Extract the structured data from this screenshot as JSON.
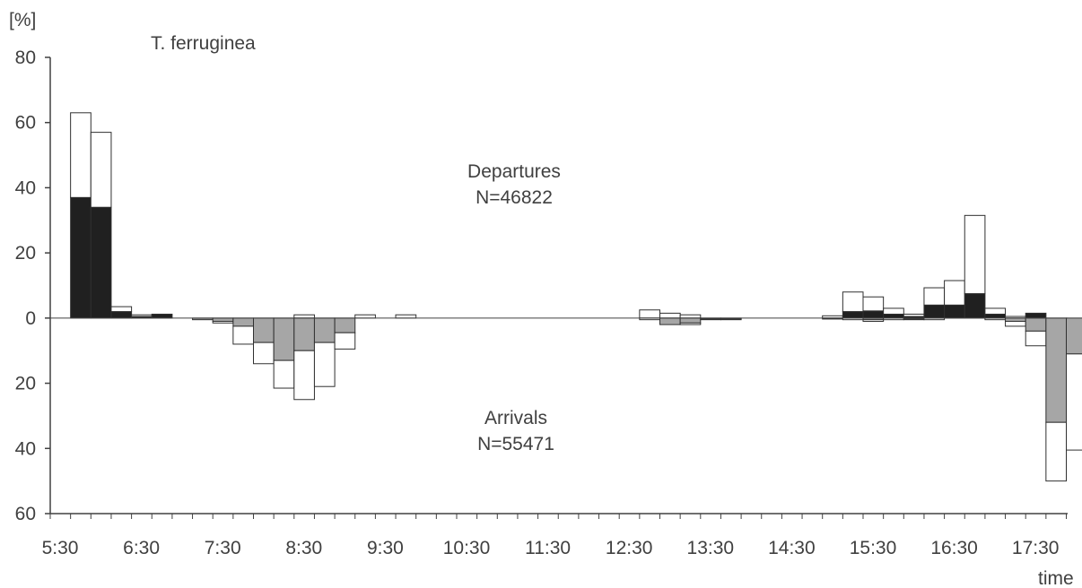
{
  "chart_data": {
    "type": "bar",
    "title": "T. ferruginea",
    "ylabel": "[%]",
    "xlabel": "time",
    "ylim": [
      -60,
      80
    ],
    "y_ticks": [
      {
        "value": 80,
        "label": "80"
      },
      {
        "value": 60,
        "label": "60"
      },
      {
        "value": 40,
        "label": "40"
      },
      {
        "value": 20,
        "label": "20"
      },
      {
        "value": 0,
        "label": "0"
      },
      {
        "value": -20,
        "label": "20"
      },
      {
        "value": -40,
        "label": "40"
      },
      {
        "value": -60,
        "label": "60"
      }
    ],
    "x_tick_labels": [
      "5:30",
      "6:30",
      "7:30",
      "8:30",
      "9:30",
      "10:30",
      "11:30",
      "12:30",
      "13:30",
      "14:30",
      "15:30",
      "16:30",
      "17:30"
    ],
    "bin_minutes": 15,
    "annotations": {
      "departures_label": "Departures",
      "departures_n": "N=46822",
      "arrivals_label": "Arrivals",
      "arrivals_n": "N=55471"
    },
    "departures": [
      {
        "slot": 1,
        "total": 63,
        "dark": 37
      },
      {
        "slot": 2,
        "total": 57,
        "dark": 34
      },
      {
        "slot": 3,
        "total": 3.5,
        "dark": 2
      },
      {
        "slot": 4,
        "total": 1,
        "dark": 0.5
      },
      {
        "slot": 5,
        "total": 1.2,
        "dark": 1.2
      },
      {
        "slot": 12,
        "total": 1,
        "dark": 0
      },
      {
        "slot": 15,
        "total": 1,
        "dark": 0
      },
      {
        "slot": 17,
        "total": 1,
        "dark": 0
      },
      {
        "slot": 29,
        "total": 2.5,
        "dark": 0
      },
      {
        "slot": 30,
        "total": 1.5,
        "dark": 0
      },
      {
        "slot": 31,
        "total": 1,
        "dark": 0
      },
      {
        "slot": 38,
        "total": 0.7,
        "dark": 0
      },
      {
        "slot": 39,
        "total": 8,
        "dark": 2
      },
      {
        "slot": 40,
        "total": 6.5,
        "dark": 2.2
      },
      {
        "slot": 41,
        "total": 3,
        "dark": 1.2
      },
      {
        "slot": 42,
        "total": 1.2,
        "dark": 0.5
      },
      {
        "slot": 43,
        "total": 9.3,
        "dark": 4
      },
      {
        "slot": 44,
        "total": 11.5,
        "dark": 4
      },
      {
        "slot": 45,
        "total": 31.5,
        "dark": 7.5
      },
      {
        "slot": 46,
        "total": 3,
        "dark": 1.2
      },
      {
        "slot": 47,
        "total": 0.5,
        "dark": 0
      },
      {
        "slot": 48,
        "total": 1.5,
        "dark": 1.5
      }
    ],
    "arrivals": [
      {
        "slot": 7,
        "total": 0.5,
        "gray": 0.5
      },
      {
        "slot": 8,
        "total": 1.5,
        "gray": 1
      },
      {
        "slot": 9,
        "total": 8,
        "gray": 2.5
      },
      {
        "slot": 10,
        "total": 14,
        "gray": 7.5
      },
      {
        "slot": 11,
        "total": 21.5,
        "gray": 13
      },
      {
        "slot": 12,
        "total": 25,
        "gray": 10
      },
      {
        "slot": 13,
        "total": 21,
        "gray": 7.5
      },
      {
        "slot": 14,
        "total": 9.5,
        "gray": 4.5
      },
      {
        "slot": 29,
        "total": 0.5,
        "gray": 0
      },
      {
        "slot": 30,
        "total": 2,
        "gray": 2
      },
      {
        "slot": 31,
        "total": 2,
        "gray": 1.5
      },
      {
        "slot": 32,
        "total": 0.5,
        "gray": 0.3
      },
      {
        "slot": 33,
        "total": 0.5,
        "gray": 0.3
      },
      {
        "slot": 38,
        "total": 0.3,
        "gray": 0
      },
      {
        "slot": 39,
        "total": 0.5,
        "gray": 0
      },
      {
        "slot": 40,
        "total": 1,
        "gray": 0.5
      },
      {
        "slot": 41,
        "total": 0.5,
        "gray": 0
      },
      {
        "slot": 42,
        "total": 0.5,
        "gray": 0.3
      },
      {
        "slot": 43,
        "total": 0.5,
        "gray": 0
      },
      {
        "slot": 46,
        "total": 0.5,
        "gray": 0
      },
      {
        "slot": 47,
        "total": 2.5,
        "gray": 1
      },
      {
        "slot": 48,
        "total": 8.5,
        "gray": 4
      },
      {
        "slot": 49,
        "total": 50,
        "gray": 32
      },
      {
        "slot": 50,
        "total": 40.5,
        "gray": 11
      }
    ],
    "colors": {
      "departure_dark": "#202020",
      "arrival_gray": "#a6a6a6",
      "bar_outline": "#303030",
      "axis": "#404040",
      "text": "#404040"
    }
  }
}
